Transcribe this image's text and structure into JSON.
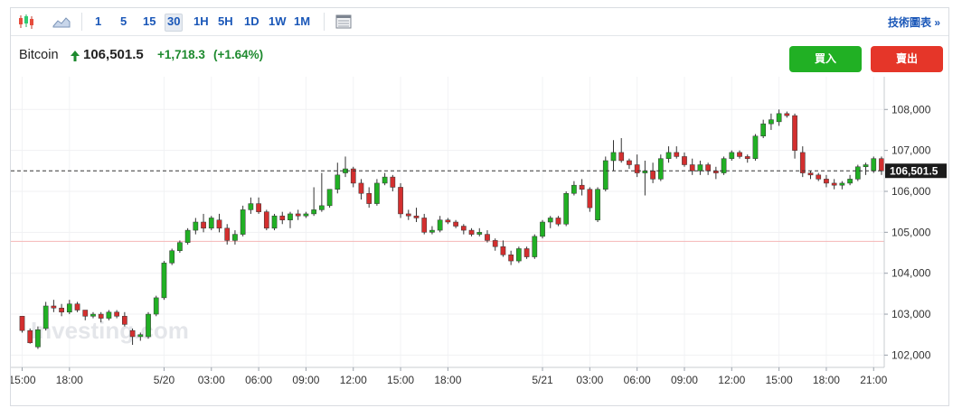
{
  "toolbar": {
    "timeframes": [
      "1",
      "5",
      "15",
      "30",
      "1H",
      "5H",
      "1D",
      "1W",
      "1M"
    ],
    "active": "30",
    "tech_link": "技術圖表 »",
    "icons": [
      "candlestick-chart-icon",
      "area-chart-icon",
      "calendar-grid-icon"
    ]
  },
  "header": {
    "symbol": "Bitcoin",
    "price": "106,501.5",
    "change": "+1,718.3",
    "change_pct": "(+1.64%)",
    "up_color": "#1e8a2f",
    "buy_label": "買入",
    "sell_label": "賣出"
  },
  "watermark": "Investing.com",
  "chart_data": {
    "type": "candlestick",
    "current_price": 106501.5,
    "current_price_label": "106,501.5",
    "reference_level": 104780,
    "y_ticks": [
      {
        "v": 108000,
        "label": "108,000"
      },
      {
        "v": 107000,
        "label": "107,000"
      },
      {
        "v": 106000,
        "label": "106,000"
      },
      {
        "v": 105000,
        "label": "105,000"
      },
      {
        "v": 104000,
        "label": "104,000"
      },
      {
        "v": 103000,
        "label": "103,000"
      },
      {
        "v": 102000,
        "label": "102,000"
      }
    ],
    "ylim": [
      101700,
      108800
    ],
    "x_ticks": [
      {
        "i": 0,
        "label": "15:00"
      },
      {
        "i": 6,
        "label": "18:00"
      },
      {
        "i": 18,
        "label": "5/20"
      },
      {
        "i": 24,
        "label": "03:00"
      },
      {
        "i": 30,
        "label": "06:00"
      },
      {
        "i": 36,
        "label": "09:00"
      },
      {
        "i": 42,
        "label": "12:00"
      },
      {
        "i": 48,
        "label": "15:00"
      },
      {
        "i": 54,
        "label": "18:00"
      },
      {
        "i": 66,
        "label": "5/21"
      },
      {
        "i": 72,
        "label": "03:00"
      },
      {
        "i": 78,
        "label": "06:00"
      },
      {
        "i": 84,
        "label": "09:00"
      },
      {
        "i": 90,
        "label": "12:00"
      },
      {
        "i": 96,
        "label": "15:00"
      },
      {
        "i": 102,
        "label": "18:00"
      },
      {
        "i": 108,
        "label": "21:00"
      }
    ],
    "up_color": "#21b024",
    "down_color": "#d32f2f",
    "candles": [
      [
        102950,
        102950,
        102550,
        102600
      ],
      [
        102600,
        102650,
        102280,
        102300
      ],
      [
        102200,
        102700,
        102150,
        102620
      ],
      [
        102650,
        103300,
        102600,
        103200
      ],
      [
        103200,
        103350,
        103050,
        103150
      ],
      [
        103150,
        103250,
        102950,
        103050
      ],
      [
        103050,
        103350,
        103000,
        103250
      ],
      [
        103250,
        103300,
        103050,
        103100
      ],
      [
        103100,
        103100,
        102850,
        102950
      ],
      [
        102950,
        103050,
        102900,
        103000
      ],
      [
        103000,
        103050,
        102800,
        102900
      ],
      [
        102900,
        103100,
        102850,
        103050
      ],
      [
        103050,
        103100,
        102900,
        102950
      ],
      [
        102950,
        103050,
        102700,
        102750
      ],
      [
        102600,
        102650,
        102250,
        102450
      ],
      [
        102450,
        102550,
        102350,
        102500
      ],
      [
        102450,
        103050,
        102400,
        103000
      ],
      [
        103000,
        103450,
        102950,
        103400
      ],
      [
        103400,
        104300,
        103350,
        104250
      ],
      [
        104250,
        104600,
        104200,
        104550
      ],
      [
        104550,
        104800,
        104500,
        104750
      ],
      [
        104750,
        105100,
        104700,
        105050
      ],
      [
        105050,
        105350,
        104950,
        105250
      ],
      [
        105250,
        105450,
        105000,
        105100
      ],
      [
        105100,
        105400,
        105050,
        105350
      ],
      [
        105300,
        105450,
        105000,
        105100
      ],
      [
        105100,
        105200,
        104700,
        104800
      ],
      [
        104800,
        105050,
        104700,
        104950
      ],
      [
        104950,
        105650,
        104900,
        105550
      ],
      [
        105550,
        105850,
        105450,
        105700
      ],
      [
        105700,
        105850,
        105450,
        105500
      ],
      [
        105500,
        105550,
        105050,
        105100
      ],
      [
        105100,
        105450,
        105050,
        105400
      ],
      [
        105400,
        105500,
        105200,
        105300
      ],
      [
        105300,
        105500,
        105100,
        105450
      ],
      [
        105450,
        105550,
        105300,
        105400
      ],
      [
        105400,
        105500,
        105350,
        105450
      ],
      [
        105450,
        106100,
        105400,
        105550
      ],
      [
        105550,
        106450,
        105500,
        105650
      ],
      [
        105650,
        106050,
        105600,
        106050
      ],
      [
        106050,
        106700,
        105950,
        106400
      ],
      [
        106450,
        106850,
        106350,
        106550
      ],
      [
        106550,
        106600,
        106100,
        106200
      ],
      [
        106200,
        106300,
        105800,
        105950
      ],
      [
        105950,
        106100,
        105600,
        105700
      ],
      [
        105700,
        106300,
        105650,
        106200
      ],
      [
        106200,
        106450,
        106150,
        106350
      ],
      [
        106350,
        106400,
        106000,
        106100
      ],
      [
        106100,
        106200,
        105350,
        105450
      ],
      [
        105450,
        105550,
        105300,
        105400
      ],
      [
        105400,
        105600,
        105250,
        105350
      ],
      [
        105350,
        105450,
        104950,
        105000
      ],
      [
        105000,
        105150,
        104950,
        105050
      ],
      [
        105050,
        105400,
        105000,
        105300
      ],
      [
        105300,
        105350,
        105200,
        105250
      ],
      [
        105250,
        105300,
        105100,
        105150
      ],
      [
        105150,
        105200,
        104950,
        105050
      ],
      [
        105050,
        105100,
        104900,
        104950
      ],
      [
        104950,
        105100,
        104900,
        105000
      ],
      [
        104950,
        105050,
        104750,
        104800
      ],
      [
        104800,
        104850,
        104550,
        104650
      ],
      [
        104650,
        104800,
        104400,
        104450
      ],
      [
        104450,
        104550,
        104200,
        104300
      ],
      [
        104300,
        104650,
        104250,
        104600
      ],
      [
        104600,
        104650,
        104350,
        104400
      ],
      [
        104400,
        104950,
        104350,
        104900
      ],
      [
        104900,
        105300,
        104850,
        105250
      ],
      [
        105250,
        105400,
        105100,
        105350
      ],
      [
        105350,
        105400,
        105150,
        105200
      ],
      [
        105200,
        106000,
        105150,
        105950
      ],
      [
        105950,
        106250,
        105900,
        106150
      ],
      [
        106150,
        106300,
        105900,
        106050
      ],
      [
        106050,
        106100,
        105500,
        105600
      ],
      [
        105300,
        106100,
        105250,
        106050
      ],
      [
        106050,
        106850,
        106000,
        106750
      ],
      [
        106750,
        107250,
        106500,
        106950
      ],
      [
        106950,
        107300,
        106700,
        106750
      ],
      [
        106750,
        106800,
        106550,
        106650
      ],
      [
        106650,
        106900,
        106350,
        106450
      ],
      [
        106450,
        106750,
        105900,
        106500
      ],
      [
        106500,
        106700,
        106200,
        106300
      ],
      [
        106300,
        106900,
        106250,
        106800
      ],
      [
        106800,
        107100,
        106700,
        106950
      ],
      [
        106950,
        107100,
        106800,
        106850
      ],
      [
        106850,
        106950,
        106600,
        106650
      ],
      [
        106650,
        106800,
        106400,
        106500
      ],
      [
        106500,
        106750,
        106400,
        106650
      ],
      [
        106650,
        106700,
        106400,
        106500
      ],
      [
        106500,
        106600,
        106300,
        106450
      ],
      [
        106450,
        106850,
        106400,
        106800
      ],
      [
        106800,
        107000,
        106750,
        106950
      ],
      [
        106950,
        107000,
        106800,
        106850
      ],
      [
        106850,
        106900,
        106700,
        106800
      ],
      [
        106800,
        107400,
        106750,
        107350
      ],
      [
        107350,
        107750,
        107300,
        107650
      ],
      [
        107650,
        107900,
        107500,
        107750
      ],
      [
        107700,
        108000,
        107600,
        107900
      ],
      [
        107900,
        107950,
        107800,
        107850
      ],
      [
        107850,
        107900,
        106800,
        107000
      ],
      [
        106950,
        107100,
        106350,
        106450
      ],
      [
        106450,
        106500,
        106300,
        106400
      ],
      [
        106400,
        106450,
        106250,
        106300
      ],
      [
        106300,
        106400,
        106100,
        106200
      ],
      [
        106200,
        106300,
        106050,
        106150
      ],
      [
        106150,
        106250,
        106050,
        106200
      ],
      [
        106200,
        106400,
        106150,
        106300
      ],
      [
        106300,
        106650,
        106250,
        106600
      ],
      [
        106600,
        106700,
        106400,
        106650
      ],
      [
        106500,
        106850,
        106450,
        106800
      ],
      [
        106800,
        106850,
        106400,
        106500
      ]
    ]
  }
}
